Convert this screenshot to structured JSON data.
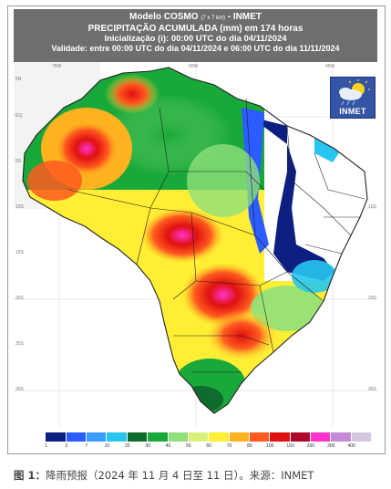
{
  "header": {
    "line1": "Modelo COSMO",
    "line1_small": "(7 x 7 km)",
    "line1_suffix": " - INMET",
    "line2": "PRECIPITAÇÃO ACUMULADA (mm) em 174 horas",
    "line3": "Inicialização (i): 00:00 UTC do dia 04/11/2024",
    "line4": "Validade: entre 00:00 UTC do dia 04/11/2024 e 06:00 UTC do dia 11/11/2024"
  },
  "logo": {
    "text": "INMET",
    "icon": "sun-cloud-rain-icon"
  },
  "map_labels": {
    "lon_top": [
      "75W",
      "60W",
      "45W"
    ],
    "lat_left": [
      "5N",
      "EQ",
      "5S",
      "10S",
      "15S",
      "20S",
      "25S",
      "30S"
    ],
    "lat_right": [
      "EQ",
      "10S",
      "20S",
      "30S"
    ]
  },
  "legend": {
    "labels": [
      "1",
      "3",
      "7",
      "10",
      "20",
      "30",
      "40",
      "50",
      "60",
      "70",
      "80",
      "100",
      "150",
      "200",
      "300",
      "400"
    ],
    "colors": [
      "#ffffff",
      "#0d1f80",
      "#2b5cff",
      "#3a9bff",
      "#26c6f0",
      "#0f6b2e",
      "#19a83a",
      "#8fe07a",
      "#d8f07a",
      "#ffee33",
      "#ffb21f",
      "#ff5a1f",
      "#e01010",
      "#b0082a",
      "#ff33cc",
      "#c48ad6",
      "#d4c7e0"
    ]
  },
  "caption": {
    "prefix": "图 1：",
    "text": "降雨预报（2024 年 11 月 4 日至 11 日）。来源：INMET"
  }
}
